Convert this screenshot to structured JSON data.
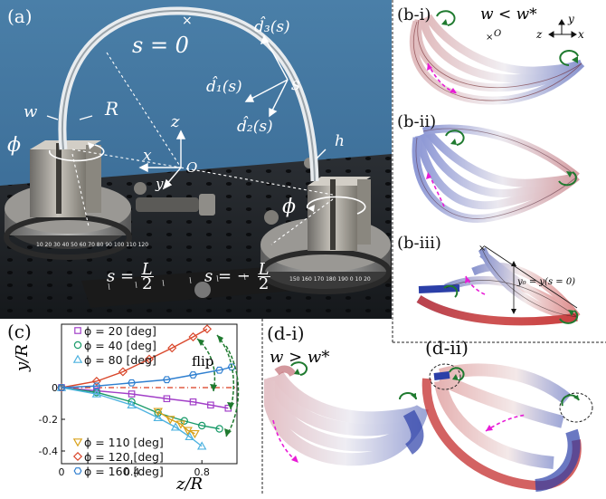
{
  "panels": {
    "a": {
      "label": "(a)",
      "annotations": {
        "s0": "s = 0",
        "d3": "d̂₃(s)",
        "d1": "d̂₁(s)",
        "d2": "d̂₂(s)",
        "s": "s",
        "R": "R",
        "w": "w",
        "h": "h",
        "phi_left": "ϕ",
        "phi_right": "ϕ",
        "z": "z",
        "x": "x",
        "y": "y",
        "O": "O",
        "s_L2_lhs": "s =",
        "s_L2_num": "L",
        "s_L2_den": "2",
        "s_mL2_lhs": "s = −",
        "s_mL2_num": "L",
        "s_mL2_den": "2"
      }
    },
    "bi": {
      "label": "(b-i)",
      "condition": "w < w*",
      "origin": "O",
      "axes": [
        "y",
        "z",
        "x"
      ]
    },
    "bii": {
      "label": "(b-ii)"
    },
    "biii": {
      "label": "(b-iii)",
      "annotation": "y₀ = y(s = 0)"
    },
    "di": {
      "label": "(d-i)",
      "condition": "w > w*"
    },
    "dii": {
      "label": "(d-ii)"
    },
    "c": {
      "label": "(c)",
      "flip_label": "flip"
    }
  },
  "colors": {
    "blue": "#2b3fa8",
    "red": "#c0392b",
    "magenta": "#e81cd6",
    "green": "#1f7a2f"
  },
  "chart_data": {
    "type": "line",
    "xlabel": "z/R",
    "ylabel": "y/R",
    "xlim": [
      0,
      1.0
    ],
    "ylim": [
      -0.48,
      0.4
    ],
    "xticks": [
      "0",
      "0.4",
      "0.8"
    ],
    "xtick_values": [
      0,
      0.4,
      0.8
    ],
    "yticks": [
      "0",
      "-0.2",
      "-0.4"
    ],
    "ytick_values": [
      0,
      -0.2,
      -0.4
    ],
    "series": [
      {
        "name": "ϕ = 20 [deg]",
        "color": "#a23fc8",
        "marker": "square",
        "x": [
          0,
          0.2,
          0.4,
          0.6,
          0.75,
          0.85,
          0.95
        ],
        "y": [
          0,
          -0.02,
          -0.04,
          -0.07,
          -0.09,
          -0.11,
          -0.13
        ]
      },
      {
        "name": "ϕ = 40 [deg]",
        "color": "#1a9b6a",
        "marker": "circle",
        "x": [
          0,
          0.2,
          0.4,
          0.55,
          0.7,
          0.8,
          0.9
        ],
        "y": [
          0,
          -0.03,
          -0.09,
          -0.16,
          -0.21,
          -0.24,
          -0.26
        ]
      },
      {
        "name": "ϕ = 80 [deg]",
        "color": "#4fb3e0",
        "marker": "triangle-up",
        "x": [
          0,
          0.2,
          0.4,
          0.55,
          0.65,
          0.73,
          0.8
        ],
        "y": [
          0,
          -0.04,
          -0.11,
          -0.19,
          -0.25,
          -0.31,
          -0.37
        ]
      },
      {
        "name": "ϕ = 110 [deg]",
        "color": "#d9a21b",
        "marker": "triangle-down",
        "x": [
          0.55,
          0.62,
          0.68,
          0.72,
          0.76
        ],
        "y": [
          -0.15,
          -0.2,
          -0.23,
          -0.27,
          -0.29
        ]
      },
      {
        "name": "ϕ = 120 [deg]",
        "color": "#d9472b",
        "marker": "diamond",
        "x": [
          0,
          0.2,
          0.35,
          0.5,
          0.63,
          0.75,
          0.83
        ],
        "y": [
          0,
          0.04,
          0.1,
          0.18,
          0.25,
          0.32,
          0.37
        ]
      },
      {
        "name": "ϕ = 160 [deg]",
        "color": "#2f7fd0",
        "marker": "hexagon",
        "x": [
          0,
          0.2,
          0.4,
          0.6,
          0.75,
          0.9,
          0.97
        ],
        "y": [
          0,
          0.01,
          0.03,
          0.05,
          0.08,
          0.11,
          0.13
        ]
      }
    ],
    "reference_line": {
      "y": 0,
      "color": "#d93b1e",
      "style": "dash-dot"
    },
    "grid": false,
    "legend_position": "left"
  }
}
